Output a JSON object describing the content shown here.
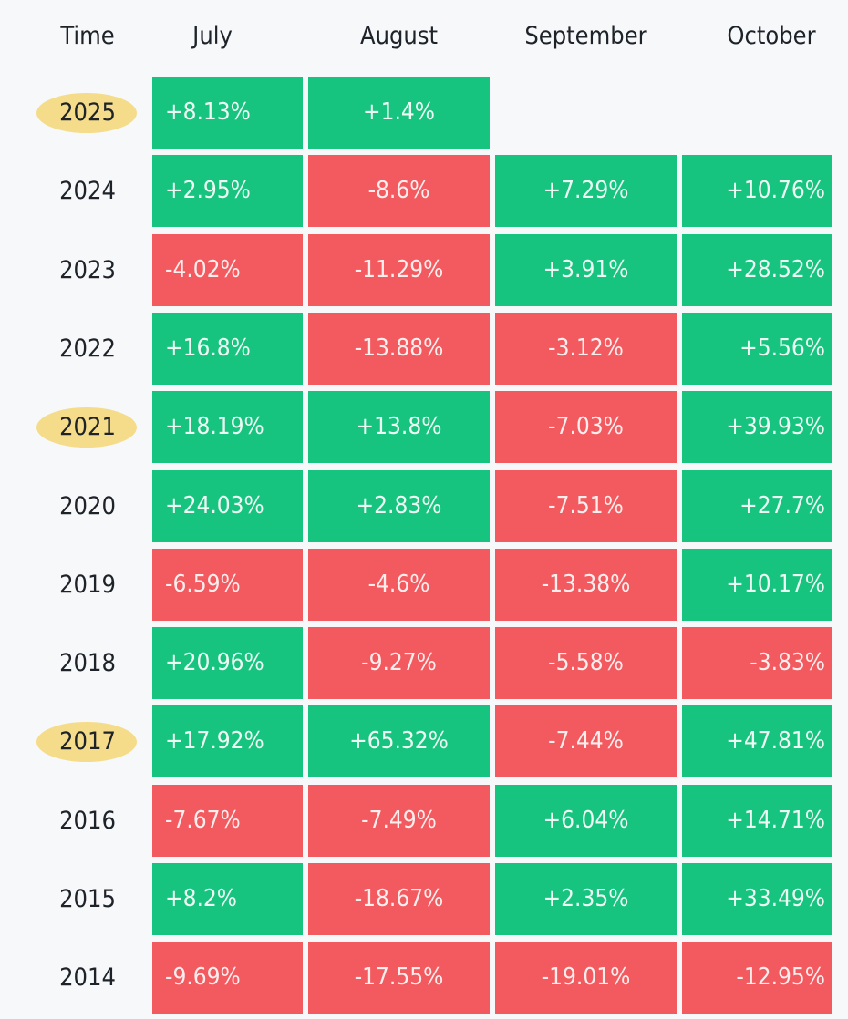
{
  "header": {
    "time_label": "Time",
    "months": [
      "July",
      "August",
      "September",
      "October"
    ]
  },
  "colors": {
    "positive": "#16c47f",
    "negative": "#f25a5f",
    "highlight": "#f5dc8a"
  },
  "chart_data": {
    "type": "heatmap",
    "columns": [
      "July",
      "August",
      "September",
      "October"
    ],
    "rows": [
      {
        "year": "2025",
        "highlighted": true,
        "values": [
          "+8.13%",
          "+1.4%",
          null,
          null
        ]
      },
      {
        "year": "2024",
        "highlighted": false,
        "values": [
          "+2.95%",
          "-8.6%",
          "+7.29%",
          "+10.76%"
        ]
      },
      {
        "year": "2023",
        "highlighted": false,
        "values": [
          "-4.02%",
          "-11.29%",
          "+3.91%",
          "+28.52%"
        ]
      },
      {
        "year": "2022",
        "highlighted": false,
        "values": [
          "+16.8%",
          "-13.88%",
          "-3.12%",
          "+5.56%"
        ]
      },
      {
        "year": "2021",
        "highlighted": true,
        "values": [
          "+18.19%",
          "+13.8%",
          "-7.03%",
          "+39.93%"
        ]
      },
      {
        "year": "2020",
        "highlighted": false,
        "values": [
          "+24.03%",
          "+2.83%",
          "-7.51%",
          "+27.7%"
        ]
      },
      {
        "year": "2019",
        "highlighted": false,
        "values": [
          "-6.59%",
          "-4.6%",
          "-13.38%",
          "+10.17%"
        ]
      },
      {
        "year": "2018",
        "highlighted": false,
        "values": [
          "+20.96%",
          "-9.27%",
          "-5.58%",
          "-3.83%"
        ]
      },
      {
        "year": "2017",
        "highlighted": true,
        "values": [
          "+17.92%",
          "+65.32%",
          "-7.44%",
          "+47.81%"
        ]
      },
      {
        "year": "2016",
        "highlighted": false,
        "values": [
          "-7.67%",
          "-7.49%",
          "+6.04%",
          "+14.71%"
        ]
      },
      {
        "year": "2015",
        "highlighted": false,
        "values": [
          "+8.2%",
          "-18.67%",
          "+2.35%",
          "+33.49%"
        ]
      },
      {
        "year": "2014",
        "highlighted": false,
        "values": [
          "-9.69%",
          "-17.55%",
          "-19.01%",
          "-12.95%"
        ]
      }
    ]
  }
}
